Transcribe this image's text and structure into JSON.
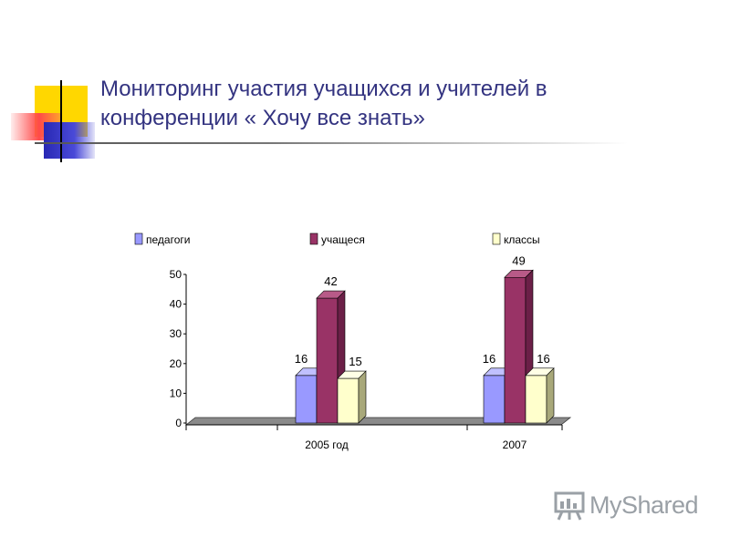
{
  "slide": {
    "title": "Мониторинг участия учащихся и учителей в конференции « Хочу все знать»"
  },
  "colors": {
    "title": "#333380",
    "deco_yellow": "#FFD700",
    "deco_red": "#FF4040",
    "deco_blue": "#3030C8",
    "pedagogi": "#9999FF",
    "uchashchiesya": "#993366",
    "klassy": "#FFFFCC"
  },
  "chart_data": {
    "type": "bar",
    "categories": [
      "2005 год",
      "2007"
    ],
    "series": [
      {
        "name": "педагоги",
        "values": [
          16,
          16
        ]
      },
      {
        "name": "учащеся",
        "values": [
          42,
          49
        ]
      },
      {
        "name": "классы",
        "values": [
          15,
          16
        ]
      }
    ],
    "yticks": [
      "0",
      "10",
      "20",
      "30",
      "40",
      "50"
    ],
    "ylim": [
      0,
      50
    ],
    "legend": "top",
    "grid": false,
    "style": "3d"
  },
  "watermark": {
    "text": "MyShared",
    "icon": "presentation-board-icon"
  }
}
